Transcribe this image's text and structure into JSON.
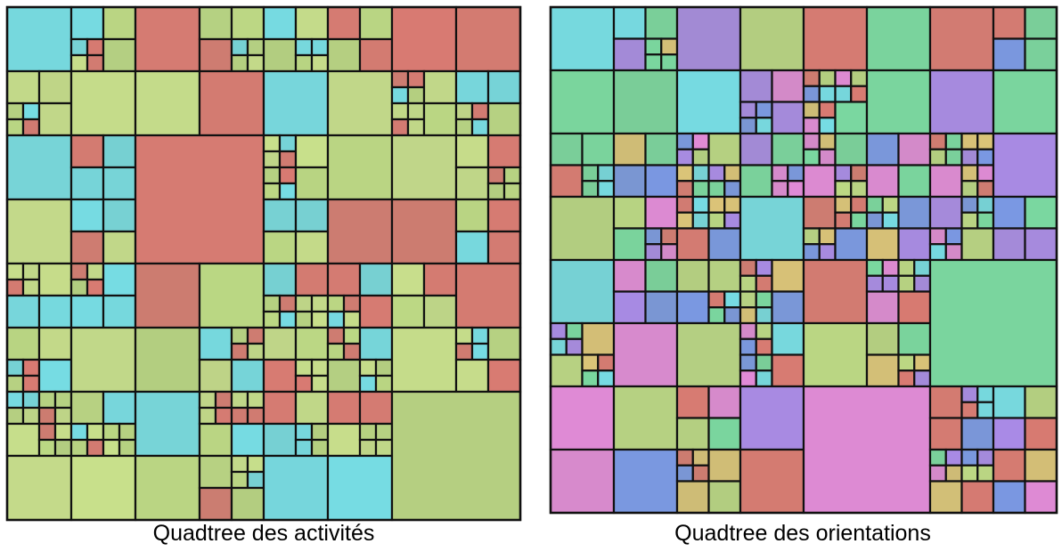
{
  "figures": [
    {
      "caption": "Quadtree des activités"
    },
    {
      "caption": "Quadtree des orientations"
    }
  ]
}
